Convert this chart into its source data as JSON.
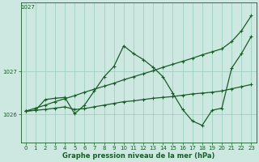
{
  "xlabel": "Graphe pression niveau de la mer (hPa)",
  "background_color": "#cce8e0",
  "grid_color": "#99ccbb",
  "line_color": "#1a5c2a",
  "xlim_min": -0.5,
  "xlim_max": 23.5,
  "ylim_min": 1025.35,
  "ylim_max": 1028.6,
  "yticks": [
    1026,
    1027
  ],
  "xticks": [
    0,
    1,
    2,
    3,
    4,
    5,
    6,
    7,
    8,
    9,
    10,
    11,
    12,
    13,
    14,
    15,
    16,
    17,
    18,
    19,
    20,
    21,
    22,
    23
  ],
  "series_diagonal_x": [
    0,
    1,
    2,
    3,
    4,
    5,
    6,
    7,
    8,
    9,
    10,
    11,
    12,
    13,
    14,
    15,
    16,
    17,
    18,
    19,
    20,
    21,
    22,
    23
  ],
  "series_diagonal_y": [
    1026.08,
    1026.15,
    1026.22,
    1026.3,
    1026.37,
    1026.44,
    1026.52,
    1026.59,
    1026.66,
    1026.73,
    1026.81,
    1026.88,
    1026.95,
    1027.02,
    1027.1,
    1027.17,
    1027.24,
    1027.31,
    1027.39,
    1027.46,
    1027.53,
    1027.7,
    1027.95,
    1028.3
  ],
  "series_zigzag_x": [
    0,
    1,
    2,
    3,
    4,
    5,
    6,
    7,
    8,
    9,
    10,
    11,
    12,
    13,
    14,
    15,
    16,
    17,
    18,
    19,
    20,
    21,
    22,
    23
  ],
  "series_zigzag_y": [
    1026.08,
    1026.1,
    1026.35,
    1026.38,
    1026.4,
    1026.02,
    1026.22,
    1026.55,
    1026.88,
    1027.12,
    1027.6,
    1027.42,
    1027.28,
    1027.1,
    1026.88,
    1026.5,
    1026.12,
    1025.85,
    1025.75,
    1026.1,
    1026.15,
    1027.08,
    1027.42,
    1027.82
  ],
  "series_flat_x": [
    0,
    1,
    2,
    3,
    4,
    5,
    6,
    7,
    8,
    9,
    10,
    11,
    12,
    13,
    14,
    15,
    16,
    17,
    18,
    19,
    20,
    21,
    22,
    23
  ],
  "series_flat_y": [
    1026.08,
    1026.1,
    1026.12,
    1026.15,
    1026.18,
    1026.12,
    1026.14,
    1026.18,
    1026.22,
    1026.26,
    1026.3,
    1026.32,
    1026.35,
    1026.38,
    1026.4,
    1026.42,
    1026.45,
    1026.48,
    1026.5,
    1026.52,
    1026.55,
    1026.6,
    1026.65,
    1026.7
  ]
}
